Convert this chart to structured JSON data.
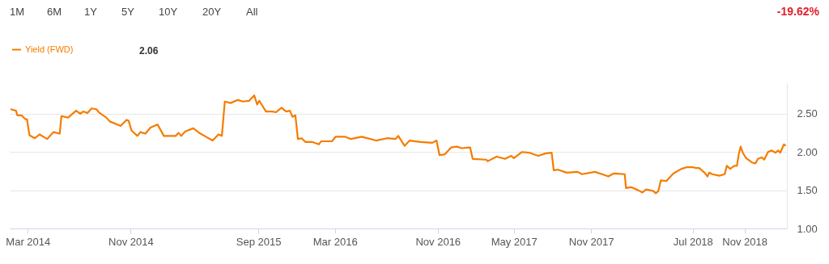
{
  "chart_data": {
    "type": "line",
    "x": [
      "2014-01-19",
      "2014-02-01",
      "2014-02-04",
      "2014-02-14",
      "2014-02-23",
      "2014-02-27",
      "2014-03-05",
      "2014-03-18",
      "2014-03-29",
      "2014-04-16",
      "2014-05-01",
      "2014-05-16",
      "2014-05-20",
      "2014-06-05",
      "2014-06-24",
      "2014-07-04",
      "2014-07-11",
      "2014-07-21",
      "2014-07-31",
      "2014-08-11",
      "2014-08-19",
      "2014-09-04",
      "2014-09-12",
      "2014-10-08",
      "2014-10-22",
      "2014-10-27",
      "2014-11-03",
      "2014-11-17",
      "2014-11-24",
      "2014-12-06",
      "2014-12-18",
      "2015-01-04",
      "2015-01-19",
      "2015-02-16",
      "2015-02-23",
      "2015-03-01",
      "2015-03-11",
      "2015-03-30",
      "2015-04-16",
      "2015-05-15",
      "2015-05-29",
      "2015-06-06",
      "2015-06-13",
      "2015-06-27",
      "2015-07-14",
      "2015-07-26",
      "2015-08-10",
      "2015-08-22",
      "2015-08-29",
      "2015-09-03",
      "2015-09-19",
      "2015-10-04",
      "2015-10-13",
      "2015-10-26",
      "2015-11-06",
      "2015-11-15",
      "2015-11-21",
      "2015-11-28",
      "2015-12-04",
      "2015-12-13",
      "2015-12-22",
      "2016-01-08",
      "2016-01-23",
      "2016-01-28",
      "2016-02-23",
      "2016-03-03",
      "2016-03-25",
      "2016-04-08",
      "2016-05-04",
      "2016-06-07",
      "2016-07-03",
      "2016-07-23",
      "2016-07-30",
      "2016-08-14",
      "2016-08-26",
      "2016-09-21",
      "2016-10-19",
      "2016-10-29",
      "2016-11-05",
      "2016-11-18",
      "2016-12-03",
      "2016-12-16",
      "2016-12-28",
      "2017-01-17",
      "2017-01-23",
      "2017-02-24",
      "2017-02-28",
      "2017-03-21",
      "2017-04-10",
      "2017-04-25",
      "2017-05-01",
      "2017-05-20",
      "2017-06-07",
      "2017-06-28",
      "2017-07-15",
      "2017-07-30",
      "2017-08-04",
      "2017-08-13",
      "2017-09-04",
      "2017-09-30",
      "2017-10-10",
      "2017-11-10",
      "2017-11-27",
      "2017-12-12",
      "2017-12-25",
      "2018-01-20",
      "2018-01-23",
      "2018-02-04",
      "2018-02-21",
      "2018-03-03",
      "2018-03-12",
      "2018-03-29",
      "2018-04-04",
      "2018-04-10",
      "2018-04-16",
      "2018-04-29",
      "2018-05-16",
      "2018-06-04",
      "2018-06-16",
      "2018-07-02",
      "2018-07-09",
      "2018-07-16",
      "2018-07-29",
      "2018-08-05",
      "2018-08-09",
      "2018-08-16",
      "2018-09-02",
      "2018-09-15",
      "2018-09-20",
      "2018-09-28",
      "2018-10-08",
      "2018-10-14",
      "2018-10-18",
      "2018-10-23",
      "2018-10-28",
      "2018-11-05",
      "2018-11-20",
      "2018-11-27",
      "2018-12-03",
      "2018-12-12",
      "2018-12-18",
      "2018-12-27",
      "2019-01-05",
      "2019-01-14",
      "2019-01-20",
      "2019-01-25",
      "2019-02-03",
      "2019-02-07"
    ],
    "series": [
      {
        "name": "Yield (FWD)",
        "color": "#f57c00",
        "values": [
          2.56,
          2.54,
          2.48,
          2.48,
          2.43,
          2.43,
          2.22,
          2.18,
          2.23,
          2.17,
          2.26,
          2.24,
          2.47,
          2.45,
          2.54,
          2.5,
          2.53,
          2.51,
          2.57,
          2.56,
          2.51,
          2.45,
          2.4,
          2.34,
          2.42,
          2.41,
          2.28,
          2.21,
          2.26,
          2.24,
          2.32,
          2.36,
          2.21,
          2.21,
          2.25,
          2.21,
          2.27,
          2.31,
          2.24,
          2.15,
          2.23,
          2.21,
          2.66,
          2.64,
          2.68,
          2.66,
          2.67,
          2.74,
          2.62,
          2.67,
          2.53,
          2.53,
          2.52,
          2.58,
          2.53,
          2.54,
          2.46,
          2.48,
          2.17,
          2.18,
          2.13,
          2.13,
          2.1,
          2.14,
          2.14,
          2.2,
          2.2,
          2.17,
          2.2,
          2.15,
          2.18,
          2.17,
          2.21,
          2.08,
          2.15,
          2.13,
          2.12,
          2.15,
          1.96,
          1.97,
          2.06,
          2.07,
          2.05,
          2.06,
          1.91,
          1.9,
          1.88,
          1.94,
          1.91,
          1.95,
          1.92,
          2.0,
          1.99,
          1.95,
          1.98,
          1.99,
          1.76,
          1.77,
          1.73,
          1.74,
          1.71,
          1.74,
          1.71,
          1.68,
          1.72,
          1.71,
          1.53,
          1.54,
          1.5,
          1.47,
          1.51,
          1.49,
          1.46,
          1.49,
          1.63,
          1.62,
          1.72,
          1.78,
          1.8,
          1.8,
          1.79,
          1.79,
          1.73,
          1.68,
          1.73,
          1.71,
          1.69,
          1.71,
          1.82,
          1.78,
          1.82,
          1.82,
          1.96,
          2.07,
          1.99,
          1.92,
          1.86,
          1.85,
          1.91,
          1.93,
          1.9,
          2.0,
          2.02,
          1.99,
          2.02,
          1.99,
          2.1,
          2.08
        ]
      }
    ],
    "xlim": [
      "2014-01-17",
      "2019-02-10"
    ],
    "xticks": [
      {
        "value": "2014-03-01",
        "label": "Mar 2014"
      },
      {
        "value": "2014-11-01",
        "label": "Nov 2014"
      },
      {
        "value": "2015-09-01",
        "label": "Sep 2015"
      },
      {
        "value": "2016-03-01",
        "label": "Mar 2016"
      },
      {
        "value": "2016-11-01",
        "label": "Nov 2016"
      },
      {
        "value": "2017-05-01",
        "label": "May 2017"
      },
      {
        "value": "2017-11-01",
        "label": "Nov 2017"
      },
      {
        "value": "2018-07-01",
        "label": "Jul 2018"
      },
      {
        "value": "2018-11-01",
        "label": "Nov 2018"
      }
    ],
    "ylim": [
      1.0,
      2.9
    ],
    "yticks": [
      {
        "value": 1.0,
        "label": "1.00"
      },
      {
        "value": 1.5,
        "label": "1.50"
      },
      {
        "value": 2.0,
        "label": "2.00"
      },
      {
        "value": 2.5,
        "label": "2.50"
      }
    ],
    "grid": "y",
    "legend": "top left",
    "marker": "none",
    "line_style": "solid",
    "annotations": [
      "1M",
      "6M",
      "1Y",
      "5Y",
      "10Y",
      "20Y",
      "All",
      "-19.62%",
      "2.06"
    ]
  }
}
